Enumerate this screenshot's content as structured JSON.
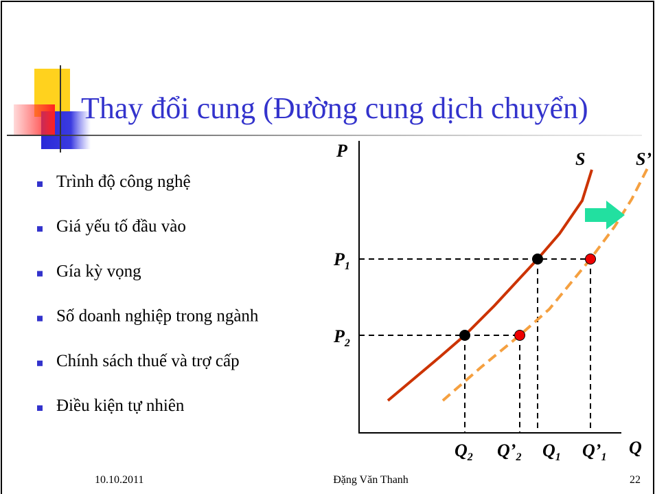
{
  "title": "Thay đổi cung (Đường cung dịch chuyển)",
  "bullets": [
    "Trình độ công nghệ",
    "Giá yếu tố đầu vào",
    "Gía kỳ vọng",
    "Số doanh nghiệp trong ngành",
    "Chính sách thuế và trợ cấp",
    "Điều kiện tự nhiên"
  ],
  "diagram": {
    "axis_y": "P",
    "axis_x": "Q",
    "curve_s": "S",
    "curve_s_shifted": "S’",
    "p1": {
      "main": "P",
      "sub": "1"
    },
    "p2": {
      "main": "P",
      "sub": "2"
    },
    "q2": {
      "main": "Q",
      "sub": "2"
    },
    "q2_shifted": {
      "main": "Q’",
      "sub": "2"
    },
    "q1": {
      "main": "Q",
      "sub": "1"
    },
    "q1_shifted": {
      "main": "Q’",
      "sub": "1"
    }
  },
  "footer": {
    "date": "10.10.2011",
    "author": "Đặng Văn Thanh",
    "page": "22"
  }
}
